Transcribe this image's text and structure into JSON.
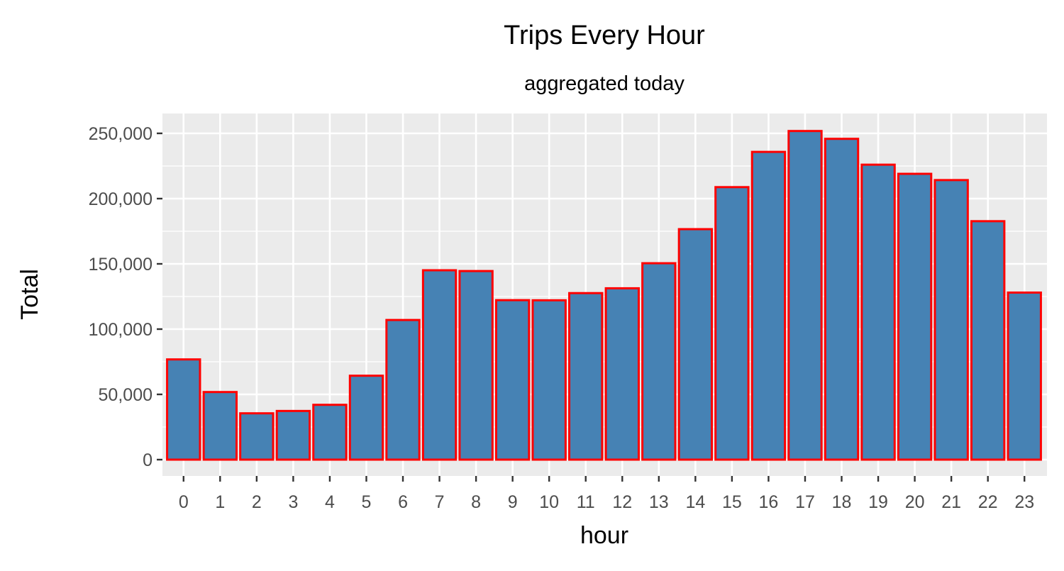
{
  "chart_data": {
    "type": "bar",
    "title": "Trips Every Hour",
    "subtitle": "aggregated today",
    "xlabel": "hour",
    "ylabel": "Total",
    "categories": [
      "0",
      "1",
      "2",
      "3",
      "4",
      "5",
      "6",
      "7",
      "8",
      "9",
      "10",
      "11",
      "12",
      "13",
      "14",
      "15",
      "16",
      "17",
      "18",
      "19",
      "20",
      "21",
      "22",
      "23"
    ],
    "values": [
      76800,
      51800,
      35500,
      37300,
      42000,
      64300,
      107000,
      145100,
      144500,
      122200,
      122100,
      127600,
      131300,
      150500,
      176600,
      208800,
      235800,
      251800,
      245800,
      226000,
      219000,
      214200,
      182700,
      128000
    ],
    "ylim": [
      0,
      265000
    ],
    "yticks": [
      0,
      50000,
      100000,
      150000,
      200000,
      250000
    ],
    "ytick_labels": [
      "0",
      "50,000",
      "100,000",
      "150,000",
      "200,000",
      "250,000"
    ],
    "grid": true,
    "legend": "none",
    "colors": {
      "bar_fill": "#4682b4",
      "bar_outline": "#ff0000",
      "panel_background": "#ebebeb",
      "grid_line": "#ffffff",
      "tick_text": "#4d4d4d",
      "title_text": "#000000"
    }
  }
}
